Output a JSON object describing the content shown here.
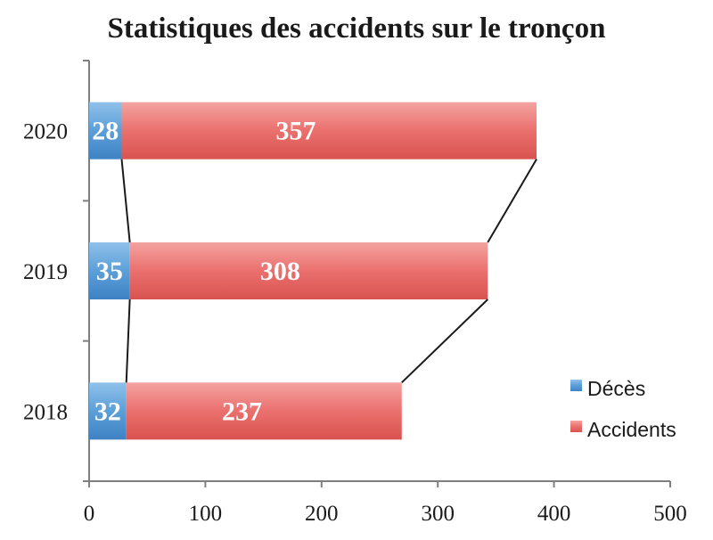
{
  "chart_data": {
    "type": "bar",
    "orientation": "horizontal",
    "stacked": true,
    "title": "Statistiques des accidents sur le tronçon",
    "categories": [
      "2020",
      "2019",
      "2018"
    ],
    "series": [
      {
        "name": "Décès",
        "values": [
          28,
          35,
          32
        ],
        "color": "#5b9bd5"
      },
      {
        "name": "Accidents",
        "values": [
          357,
          308,
          237
        ],
        "color": "#e8706e"
      }
    ],
    "xlim": [
      0,
      500
    ],
    "xticks": [
      "0",
      "100",
      "200",
      "300",
      "400",
      "500"
    ],
    "series_lines": true,
    "grid": false,
    "legend": "right"
  }
}
